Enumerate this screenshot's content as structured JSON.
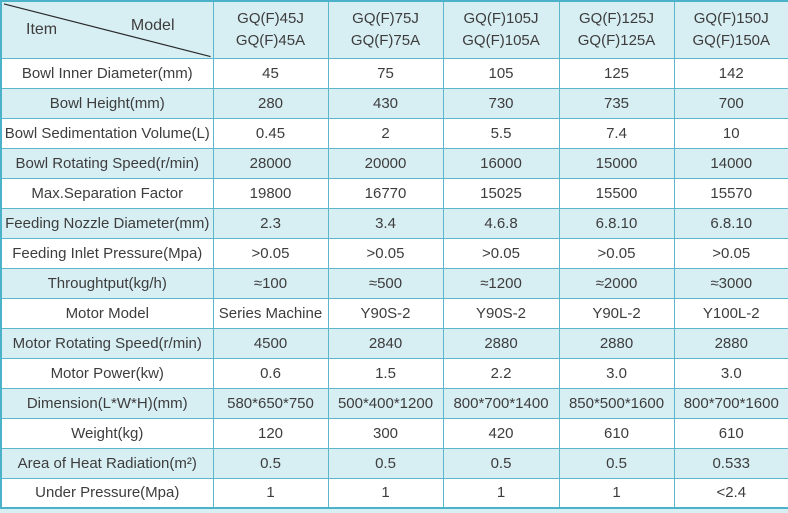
{
  "header": {
    "item_label": "Item",
    "model_label": "Model"
  },
  "table": {
    "columns": [
      [
        "GQ(F)45J",
        "GQ(F)45A"
      ],
      [
        "GQ(F)75J",
        "GQ(F)75A"
      ],
      [
        "GQ(F)105J",
        "GQ(F)105A"
      ],
      [
        "GQ(F)125J",
        "GQ(F)125A"
      ],
      [
        "GQ(F)150J",
        "GQ(F)150A"
      ]
    ],
    "rows": [
      {
        "label": "Bowl Inner Diameter(mm)",
        "values": [
          "45",
          "75",
          "105",
          "125",
          "142"
        ]
      },
      {
        "label": "Bowl Height(mm)",
        "values": [
          "280",
          "430",
          "730",
          "735",
          "700"
        ]
      },
      {
        "label": "Bowl Sedimentation Volume(L)",
        "values": [
          "0.45",
          "2",
          "5.5",
          "7.4",
          "10"
        ]
      },
      {
        "label": "Bowl Rotating Speed(r/min)",
        "values": [
          "28000",
          "20000",
          "16000",
          "15000",
          "14000"
        ]
      },
      {
        "label": "Max.Separation Factor",
        "values": [
          "19800",
          "16770",
          "15025",
          "15500",
          "15570"
        ]
      },
      {
        "label": "Feeding Nozzle Diameter(mm)",
        "values": [
          "2.3",
          "3.4",
          "4.6.8",
          "6.8.10",
          "6.8.10"
        ]
      },
      {
        "label": "Feeding Inlet Pressure(Mpa)",
        "values": [
          ">0.05",
          ">0.05",
          ">0.05",
          ">0.05",
          ">0.05"
        ]
      },
      {
        "label": "Throughtput(kg/h)",
        "values": [
          "≈100",
          "≈500",
          "≈1200",
          "≈2000",
          "≈3000"
        ]
      },
      {
        "label": "Motor Model",
        "values": [
          "Series Machine",
          "Y90S-2",
          "Y90S-2",
          "Y90L-2",
          "Y100L-2"
        ]
      },
      {
        "label": "Motor Rotating Speed(r/min)",
        "values": [
          "4500",
          "2840",
          "2880",
          "2880",
          "2880"
        ]
      },
      {
        "label": "Motor Power(kw)",
        "values": [
          "0.6",
          "1.5",
          "2.2",
          "3.0",
          "3.0"
        ]
      },
      {
        "label": "Dimension(L*W*H)(mm)",
        "values": [
          "580*650*750",
          "500*400*1200",
          "800*700*1400",
          "850*500*1600",
          "800*700*1600"
        ]
      },
      {
        "label": "Weight(kg)",
        "values": [
          "120",
          "300",
          "420",
          "610",
          "610"
        ]
      },
      {
        "label": "Area of Heat Radiation(m²)",
        "values": [
          "0.5",
          "0.5",
          "0.5",
          "0.5",
          "0.533"
        ]
      },
      {
        "label": "Under Pressure(Mpa)",
        "values": [
          "1",
          "1",
          "1",
          "1",
          "<2.4"
        ]
      }
    ]
  },
  "colors": {
    "border": "#5cb6cc",
    "outer_border": "#4bb2ca",
    "row_cyan": "#d7eef3",
    "row_white": "#ffffff",
    "text": "#3d3d3d"
  }
}
